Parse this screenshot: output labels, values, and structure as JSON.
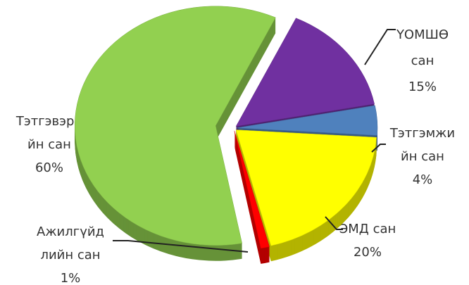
{
  "chart_data": {
    "type": "pie3d",
    "categories": [
      [
        "ҮОМШӨ",
        "сан"
      ],
      [
        "Тэтгэмжи",
        "йн сан"
      ],
      [
        "ЭМД сан"
      ],
      [
        "Ажилгүйд",
        "лийн сан"
      ],
      [
        "Тэтгэвэри",
        "йн сан"
      ]
    ],
    "values": [
      15,
      4,
      20,
      1,
      60
    ],
    "value_labels": [
      "15%",
      "4%",
      "20%",
      "1%",
      "60%"
    ],
    "colors": [
      "#7030a0",
      "#4f81bd",
      "#ffff00",
      "#ff0000",
      "#92d050"
    ]
  }
}
